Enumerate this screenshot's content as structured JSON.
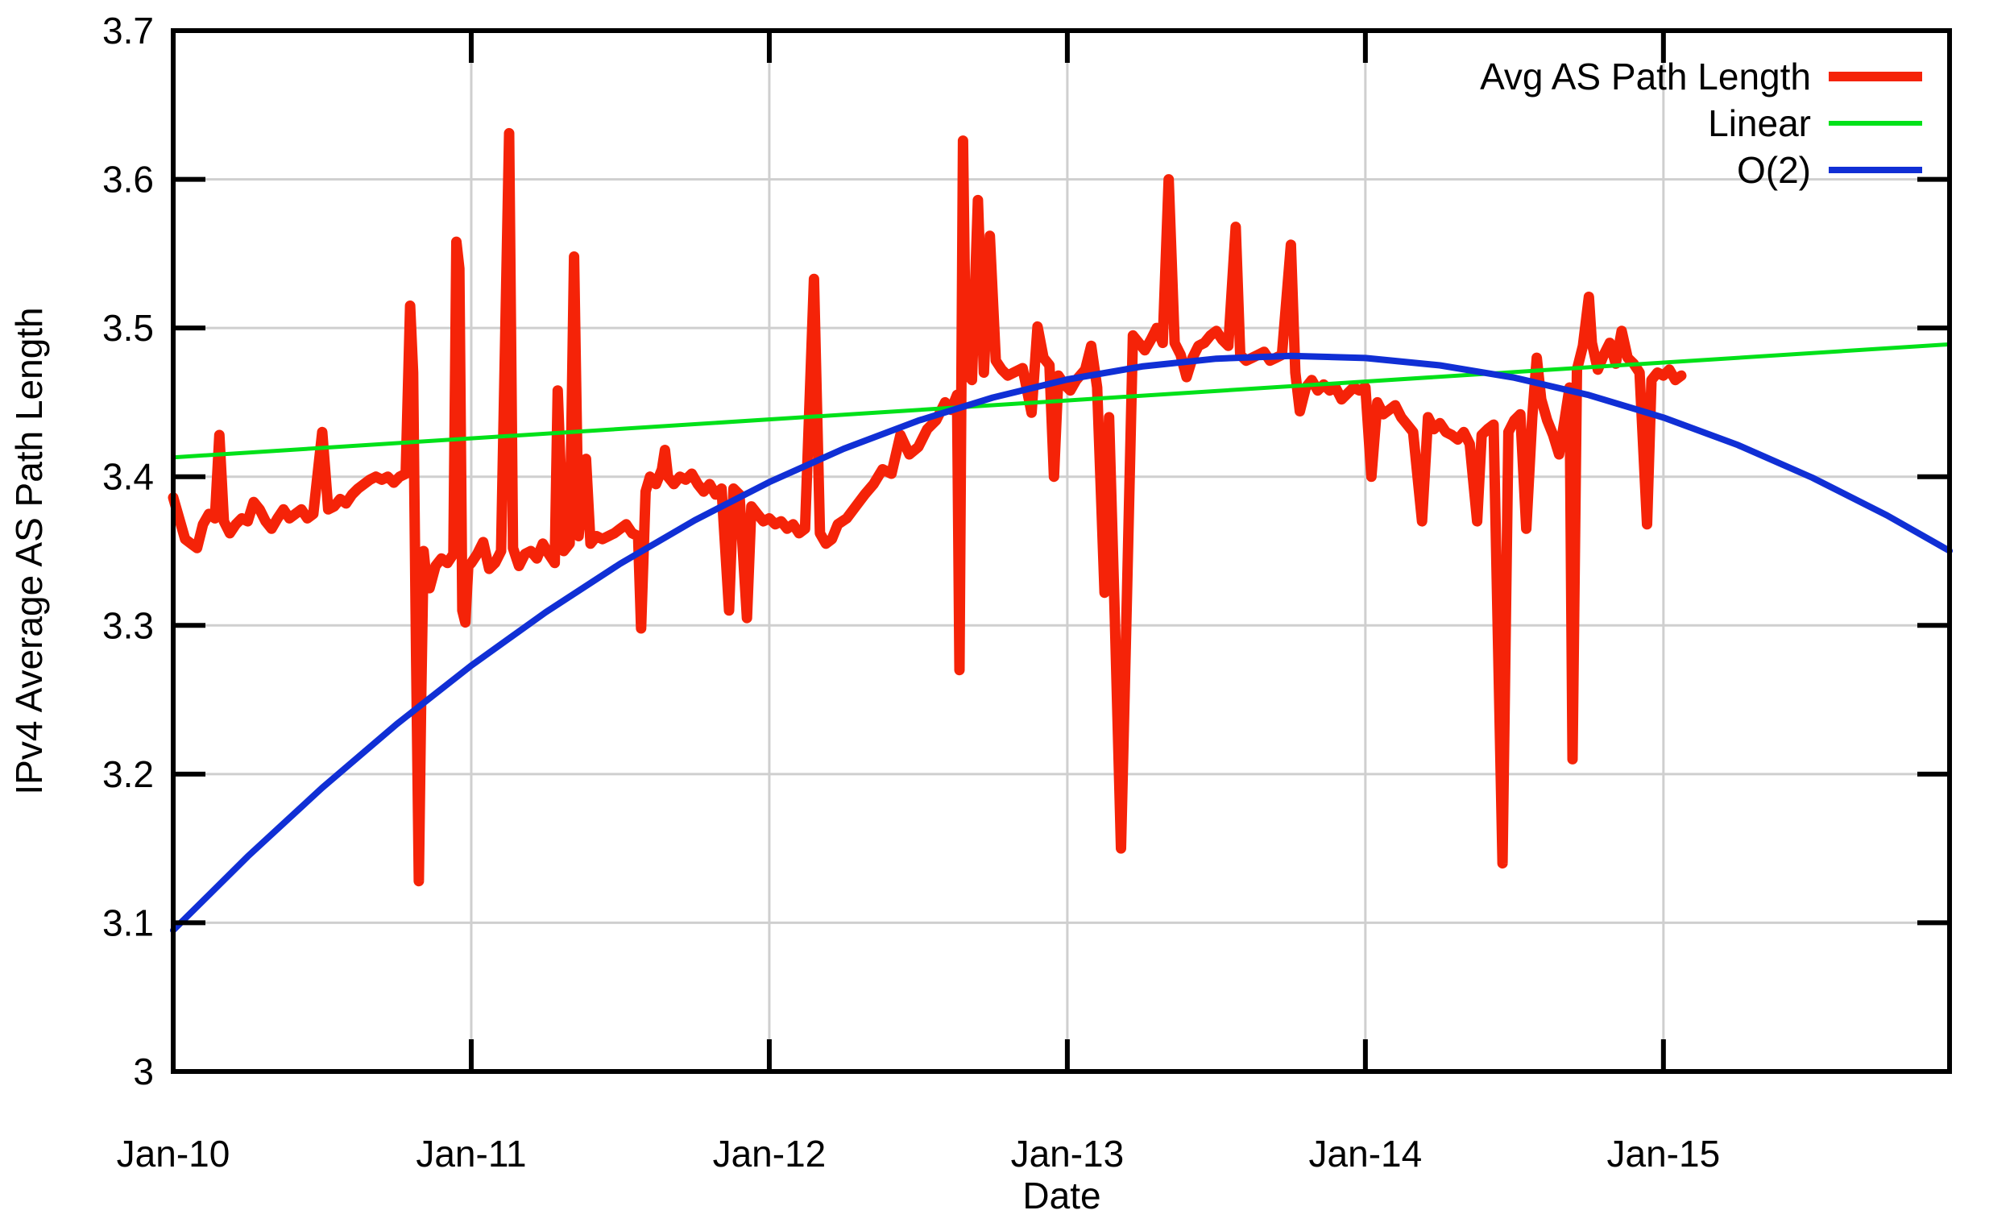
{
  "chart_data": {
    "type": "line",
    "title": "",
    "xlabel": "Date",
    "ylabel": "IPv4 Average AS Path Length",
    "grid": true,
    "legend_position": "top-right-inside",
    "background_color": "#ffffff",
    "grid_color": "#cfcfcf",
    "frame_color": "#000000",
    "x_axis": {
      "unit": "years-since-2010",
      "min": 0,
      "max": 5.96,
      "ticks": [
        {
          "t": 0,
          "label": "Jan-10"
        },
        {
          "t": 1,
          "label": "Jan-11"
        },
        {
          "t": 2,
          "label": "Jan-12"
        },
        {
          "t": 3,
          "label": "Jan-13"
        },
        {
          "t": 4,
          "label": "Jan-14"
        },
        {
          "t": 5,
          "label": "Jan-15"
        }
      ]
    },
    "y_axis": {
      "min": 3.0,
      "max": 3.7,
      "ticks": [
        {
          "v": 3.0,
          "label": "3"
        },
        {
          "v": 3.1,
          "label": "3.1"
        },
        {
          "v": 3.2,
          "label": "3.2"
        },
        {
          "v": 3.3,
          "label": "3.3"
        },
        {
          "v": 3.4,
          "label": "3.4"
        },
        {
          "v": 3.5,
          "label": "3.5"
        },
        {
          "v": 3.6,
          "label": "3.6"
        },
        {
          "v": 3.7,
          "label": "3.7"
        }
      ]
    },
    "series": [
      {
        "name": "Avg AS Path Length",
        "color": "#f52308",
        "width": 13,
        "legend_sample_width": 12,
        "points": [
          [
            0.0,
            3.386
          ],
          [
            0.02,
            3.372
          ],
          [
            0.04,
            3.358
          ],
          [
            0.06,
            3.355
          ],
          [
            0.08,
            3.352
          ],
          [
            0.1,
            3.368
          ],
          [
            0.12,
            3.375
          ],
          [
            0.14,
            3.372
          ],
          [
            0.155,
            3.428
          ],
          [
            0.17,
            3.37
          ],
          [
            0.19,
            3.362
          ],
          [
            0.21,
            3.368
          ],
          [
            0.23,
            3.372
          ],
          [
            0.25,
            3.37
          ],
          [
            0.27,
            3.383
          ],
          [
            0.29,
            3.378
          ],
          [
            0.31,
            3.37
          ],
          [
            0.33,
            3.365
          ],
          [
            0.35,
            3.372
          ],
          [
            0.37,
            3.378
          ],
          [
            0.39,
            3.372
          ],
          [
            0.41,
            3.375
          ],
          [
            0.43,
            3.378
          ],
          [
            0.45,
            3.372
          ],
          [
            0.47,
            3.375
          ],
          [
            0.5,
            3.43
          ],
          [
            0.52,
            3.378
          ],
          [
            0.54,
            3.38
          ],
          [
            0.56,
            3.385
          ],
          [
            0.58,
            3.382
          ],
          [
            0.6,
            3.388
          ],
          [
            0.62,
            3.392
          ],
          [
            0.64,
            3.395
          ],
          [
            0.66,
            3.398
          ],
          [
            0.68,
            3.4
          ],
          [
            0.7,
            3.398
          ],
          [
            0.72,
            3.4
          ],
          [
            0.74,
            3.396
          ],
          [
            0.76,
            3.4
          ],
          [
            0.78,
            3.402
          ],
          [
            0.795,
            3.515
          ],
          [
            0.805,
            3.47
          ],
          [
            0.815,
            3.28
          ],
          [
            0.824,
            3.128
          ],
          [
            0.832,
            3.25
          ],
          [
            0.84,
            3.35
          ],
          [
            0.85,
            3.33
          ],
          [
            0.86,
            3.325
          ],
          [
            0.88,
            3.34
          ],
          [
            0.9,
            3.345
          ],
          [
            0.92,
            3.342
          ],
          [
            0.94,
            3.348
          ],
          [
            0.95,
            3.558
          ],
          [
            0.96,
            3.54
          ],
          [
            0.97,
            3.31
          ],
          [
            0.98,
            3.302
          ],
          [
            0.99,
            3.34
          ],
          [
            1.0,
            3.342
          ],
          [
            1.02,
            3.348
          ],
          [
            1.04,
            3.356
          ],
          [
            1.06,
            3.338
          ],
          [
            1.08,
            3.342
          ],
          [
            1.1,
            3.35
          ],
          [
            1.127,
            3.631
          ],
          [
            1.14,
            3.352
          ],
          [
            1.16,
            3.34
          ],
          [
            1.18,
            3.348
          ],
          [
            1.2,
            3.35
          ],
          [
            1.22,
            3.345
          ],
          [
            1.24,
            3.355
          ],
          [
            1.26,
            3.348
          ],
          [
            1.28,
            3.342
          ],
          [
            1.29,
            3.458
          ],
          [
            1.31,
            3.35
          ],
          [
            1.33,
            3.355
          ],
          [
            1.345,
            3.548
          ],
          [
            1.36,
            3.36
          ],
          [
            1.385,
            3.412
          ],
          [
            1.4,
            3.355
          ],
          [
            1.42,
            3.36
          ],
          [
            1.44,
            3.358
          ],
          [
            1.46,
            3.36
          ],
          [
            1.48,
            3.362
          ],
          [
            1.5,
            3.365
          ],
          [
            1.52,
            3.368
          ],
          [
            1.54,
            3.362
          ],
          [
            1.56,
            3.36
          ],
          [
            1.57,
            3.298
          ],
          [
            1.585,
            3.39
          ],
          [
            1.6,
            3.4
          ],
          [
            1.62,
            3.395
          ],
          [
            1.64,
            3.405
          ],
          [
            1.65,
            3.418
          ],
          [
            1.66,
            3.4
          ],
          [
            1.68,
            3.395
          ],
          [
            1.7,
            3.4
          ],
          [
            1.72,
            3.398
          ],
          [
            1.74,
            3.402
          ],
          [
            1.76,
            3.395
          ],
          [
            1.78,
            3.39
          ],
          [
            1.8,
            3.395
          ],
          [
            1.82,
            3.388
          ],
          [
            1.84,
            3.392
          ],
          [
            1.865,
            3.31
          ],
          [
            1.88,
            3.392
          ],
          [
            1.9,
            3.388
          ],
          [
            1.925,
            3.305
          ],
          [
            1.94,
            3.38
          ],
          [
            1.96,
            3.375
          ],
          [
            1.98,
            3.37
          ],
          [
            2.0,
            3.372
          ],
          [
            2.02,
            3.368
          ],
          [
            2.04,
            3.37
          ],
          [
            2.06,
            3.365
          ],
          [
            2.08,
            3.368
          ],
          [
            2.1,
            3.362
          ],
          [
            2.12,
            3.365
          ],
          [
            2.15,
            3.533
          ],
          [
            2.17,
            3.362
          ],
          [
            2.19,
            3.355
          ],
          [
            2.21,
            3.358
          ],
          [
            2.23,
            3.368
          ],
          [
            2.26,
            3.372
          ],
          [
            2.29,
            3.38
          ],
          [
            2.32,
            3.388
          ],
          [
            2.35,
            3.395
          ],
          [
            2.38,
            3.405
          ],
          [
            2.41,
            3.402
          ],
          [
            2.44,
            3.428
          ],
          [
            2.47,
            3.415
          ],
          [
            2.5,
            3.42
          ],
          [
            2.53,
            3.432
          ],
          [
            2.56,
            3.438
          ],
          [
            2.59,
            3.45
          ],
          [
            2.61,
            3.445
          ],
          [
            2.63,
            3.455
          ],
          [
            2.638,
            3.27
          ],
          [
            2.65,
            3.626
          ],
          [
            2.66,
            3.47
          ],
          [
            2.68,
            3.465
          ],
          [
            2.7,
            3.586
          ],
          [
            2.72,
            3.47
          ],
          [
            2.74,
            3.562
          ],
          [
            2.76,
            3.478
          ],
          [
            2.78,
            3.472
          ],
          [
            2.8,
            3.468
          ],
          [
            2.82,
            3.47
          ],
          [
            2.85,
            3.473
          ],
          [
            2.88,
            3.443
          ],
          [
            2.9,
            3.501
          ],
          [
            2.92,
            3.48
          ],
          [
            2.94,
            3.475
          ],
          [
            2.955,
            3.4
          ],
          [
            2.97,
            3.468
          ],
          [
            2.99,
            3.462
          ],
          [
            3.01,
            3.458
          ],
          [
            3.03,
            3.465
          ],
          [
            3.06,
            3.472
          ],
          [
            3.08,
            3.488
          ],
          [
            3.1,
            3.46
          ],
          [
            3.125,
            3.322
          ],
          [
            3.14,
            3.44
          ],
          [
            3.16,
            3.3
          ],
          [
            3.18,
            3.15
          ],
          [
            3.2,
            3.32
          ],
          [
            3.22,
            3.495
          ],
          [
            3.24,
            3.49
          ],
          [
            3.26,
            3.485
          ],
          [
            3.28,
            3.492
          ],
          [
            3.3,
            3.5
          ],
          [
            3.32,
            3.49
          ],
          [
            3.34,
            3.6
          ],
          [
            3.36,
            3.49
          ],
          [
            3.38,
            3.482
          ],
          [
            3.4,
            3.467
          ],
          [
            3.42,
            3.48
          ],
          [
            3.44,
            3.488
          ],
          [
            3.46,
            3.49
          ],
          [
            3.48,
            3.495
          ],
          [
            3.5,
            3.498
          ],
          [
            3.52,
            3.492
          ],
          [
            3.54,
            3.488
          ],
          [
            3.565,
            3.568
          ],
          [
            3.58,
            3.482
          ],
          [
            3.6,
            3.478
          ],
          [
            3.62,
            3.48
          ],
          [
            3.64,
            3.482
          ],
          [
            3.66,
            3.484
          ],
          [
            3.68,
            3.478
          ],
          [
            3.7,
            3.48
          ],
          [
            3.72,
            3.482
          ],
          [
            3.75,
            3.556
          ],
          [
            3.765,
            3.47
          ],
          [
            3.78,
            3.444
          ],
          [
            3.8,
            3.46
          ],
          [
            3.82,
            3.465
          ],
          [
            3.84,
            3.458
          ],
          [
            3.86,
            3.462
          ],
          [
            3.88,
            3.458
          ],
          [
            3.9,
            3.46
          ],
          [
            3.92,
            3.452
          ],
          [
            3.94,
            3.456
          ],
          [
            3.96,
            3.46
          ],
          [
            3.98,
            3.458
          ],
          [
            4.0,
            3.46
          ],
          [
            4.02,
            3.4
          ],
          [
            4.04,
            3.45
          ],
          [
            4.06,
            3.442
          ],
          [
            4.08,
            3.445
          ],
          [
            4.1,
            3.448
          ],
          [
            4.12,
            3.44
          ],
          [
            4.14,
            3.435
          ],
          [
            4.16,
            3.43
          ],
          [
            4.19,
            3.37
          ],
          [
            4.21,
            3.44
          ],
          [
            4.23,
            3.432
          ],
          [
            4.25,
            3.436
          ],
          [
            4.27,
            3.43
          ],
          [
            4.29,
            3.428
          ],
          [
            4.31,
            3.425
          ],
          [
            4.33,
            3.43
          ],
          [
            4.35,
            3.422
          ],
          [
            4.375,
            3.37
          ],
          [
            4.39,
            3.428
          ],
          [
            4.41,
            3.432
          ],
          [
            4.43,
            3.435
          ],
          [
            4.46,
            3.14
          ],
          [
            4.48,
            3.43
          ],
          [
            4.5,
            3.438
          ],
          [
            4.52,
            3.442
          ],
          [
            4.54,
            3.365
          ],
          [
            4.56,
            3.44
          ],
          [
            4.575,
            3.48
          ],
          [
            4.59,
            3.452
          ],
          [
            4.61,
            3.438
          ],
          [
            4.63,
            3.428
          ],
          [
            4.65,
            3.415
          ],
          [
            4.67,
            3.44
          ],
          [
            4.685,
            3.46
          ],
          [
            4.695,
            3.21
          ],
          [
            4.71,
            3.472
          ],
          [
            4.73,
            3.488
          ],
          [
            4.75,
            3.521
          ],
          [
            4.76,
            3.49
          ],
          [
            4.78,
            3.472
          ],
          [
            4.8,
            3.482
          ],
          [
            4.82,
            3.49
          ],
          [
            4.84,
            3.476
          ],
          [
            4.86,
            3.498
          ],
          [
            4.88,
            3.48
          ],
          [
            4.9,
            3.476
          ],
          [
            4.92,
            3.47
          ],
          [
            4.945,
            3.368
          ],
          [
            4.96,
            3.465
          ],
          [
            4.98,
            3.47
          ],
          [
            5.0,
            3.468
          ],
          [
            5.02,
            3.472
          ],
          [
            5.04,
            3.465
          ],
          [
            5.06,
            3.468
          ]
        ]
      },
      {
        "name": "Linear",
        "color": "#00e119",
        "width": 5,
        "legend_sample_width": 6,
        "points": [
          [
            0,
            3.413
          ],
          [
            5.96,
            3.489
          ]
        ]
      },
      {
        "name": "O(2)",
        "color": "#102fd5",
        "width": 8,
        "legend_sample_width": 8,
        "points": [
          [
            0,
            3.095
          ],
          [
            0.25,
            3.1446
          ],
          [
            0.5,
            3.1908
          ],
          [
            0.75,
            3.2336
          ],
          [
            1.0,
            3.273
          ],
          [
            1.25,
            3.3089
          ],
          [
            1.5,
            3.3415
          ],
          [
            1.75,
            3.3707
          ],
          [
            2.0,
            3.3964
          ],
          [
            2.25,
            3.4188
          ],
          [
            2.5,
            3.4377
          ],
          [
            2.75,
            3.4532
          ],
          [
            3.0,
            3.4654
          ],
          [
            3.25,
            3.4741
          ],
          [
            3.5,
            3.4794
          ],
          [
            3.75,
            3.4813
          ],
          [
            4.0,
            3.4798
          ],
          [
            4.25,
            3.4749
          ],
          [
            4.5,
            3.4666
          ],
          [
            4.75,
            3.4549
          ],
          [
            5.0,
            3.4398
          ],
          [
            5.25,
            3.4213
          ],
          [
            5.5,
            3.3993
          ],
          [
            5.75,
            3.374
          ],
          [
            5.96,
            3.3501
          ]
        ]
      }
    ]
  }
}
